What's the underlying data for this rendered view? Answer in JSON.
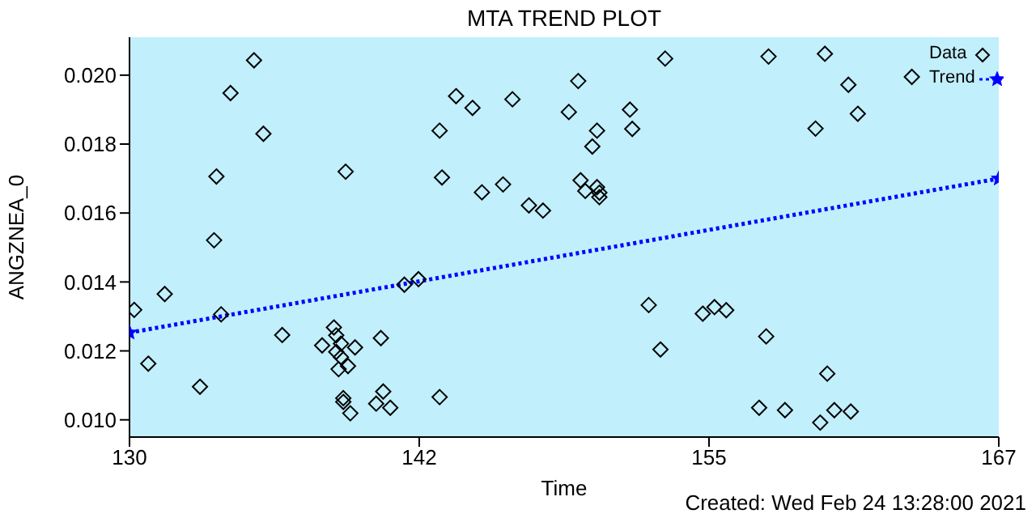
{
  "chart_data": {
    "type": "scatter",
    "title": "MTA TREND PLOT",
    "xlabel": "Time",
    "ylabel": "ANGZNEA_0",
    "annotations": [
      "Created: Wed Feb 24 13:28:00 2021"
    ],
    "xlim": [
      130,
      167
    ],
    "xticks": [
      130,
      {
        "value": 142.333,
        "label": "142"
      },
      {
        "value": 154.667,
        "label": "155"
      },
      167
    ],
    "ylim": [
      0.0095,
      0.0211
    ],
    "yticks": [
      {
        "value": 0.01,
        "label": "0.010"
      },
      {
        "value": 0.012,
        "label": "0.012"
      },
      {
        "value": 0.014,
        "label": "0.014"
      },
      {
        "value": 0.016,
        "label": "0.016"
      },
      {
        "value": 0.018,
        "label": "0.018"
      },
      {
        "value": 0.02,
        "label": "0.020"
      }
    ],
    "legend": "top right",
    "series": [
      {
        "name": "Data",
        "marker": "diamond",
        "color": "#000000",
        "x": [
          130.2,
          131.5,
          130.8,
          133.0,
          133.6,
          133.7,
          133.9,
          134.3,
          135.3,
          135.7,
          136.5,
          139.2,
          138.2,
          138.7,
          138.8,
          139.0,
          138.8,
          139.0,
          139.6,
          139.3,
          138.9,
          139.1,
          139.1,
          139.4,
          140.7,
          140.8,
          140.5,
          141.1,
          141.7,
          142.3,
          143.2,
          143.3,
          143.2,
          143.9,
          144.6,
          145.0,
          145.9,
          146.3,
          147.0,
          147.6,
          148.7,
          149.1,
          149.2,
          149.4,
          149.7,
          149.9,
          149.9,
          150.0,
          150.0,
          151.3,
          151.4,
          152.1,
          152.6,
          152.8,
          154.4,
          154.9,
          155.4,
          157.2,
          157.1,
          156.8,
          157.9,
          159.2,
          159.6,
          159.7,
          159.4,
          160.0,
          160.7,
          160.6,
          161.0,
          163.3
        ],
        "values": [
          0.01319,
          0.01365,
          0.01163,
          0.01096,
          0.01521,
          0.01706,
          0.01306,
          0.01948,
          0.02043,
          0.0183,
          0.01246,
          0.0172,
          0.01216,
          0.01268,
          0.01245,
          0.01221,
          0.01197,
          0.01182,
          0.0121,
          0.01156,
          0.01147,
          0.01063,
          0.01052,
          0.01019,
          0.01237,
          0.01082,
          0.01047,
          0.01035,
          0.01392,
          0.01408,
          0.01839,
          0.01703,
          0.01066,
          0.01939,
          0.01905,
          0.0166,
          0.01683,
          0.0193,
          0.01622,
          0.01607,
          0.01893,
          0.01983,
          0.01695,
          0.01664,
          0.01793,
          0.01839,
          0.01675,
          0.01659,
          0.01646,
          0.019,
          0.01844,
          0.01333,
          0.01204,
          0.02048,
          0.01308,
          0.01327,
          0.01318,
          0.02054,
          0.01242,
          0.01035,
          0.01028,
          0.01845,
          0.02062,
          0.01134,
          0.00992,
          0.01028,
          0.01024,
          0.01972,
          0.01888,
          0.01995
        ]
      },
      {
        "name": "Trend",
        "type": "line",
        "marker": "star",
        "line_style": "dotted",
        "color": "#0000ff",
        "x": [
          130,
          167
        ],
        "values": [
          0.01253,
          0.017
        ]
      }
    ]
  }
}
